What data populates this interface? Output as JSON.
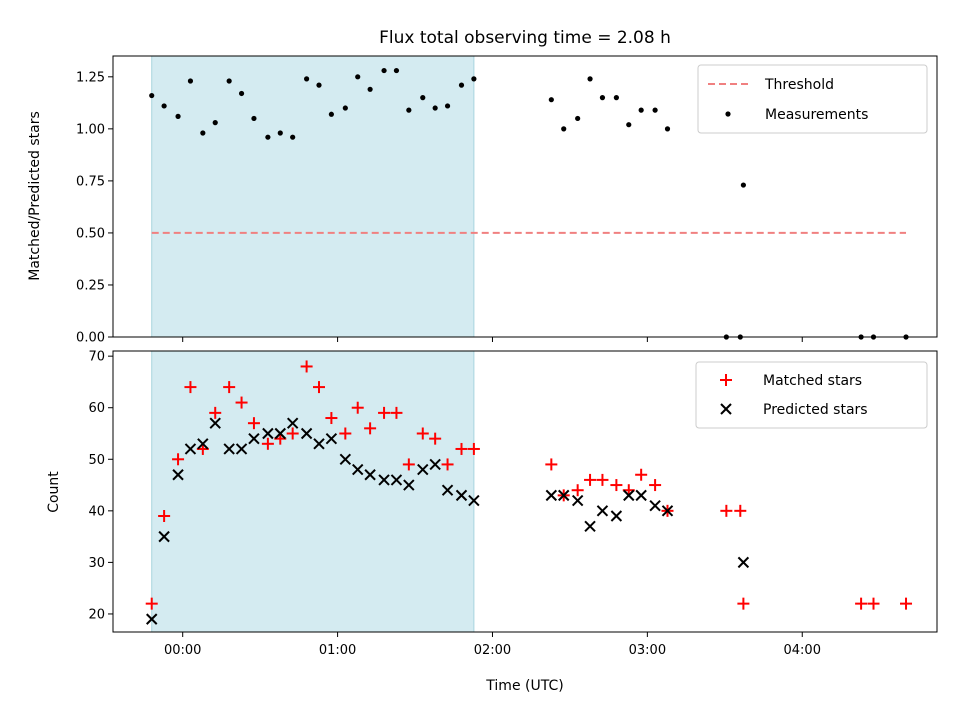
{
  "chart_data": [
    {
      "type": "scatter",
      "title": "Flux total observing time = 2.08 h",
      "xlabel": "",
      "ylabel": "Matched/Predicted stars",
      "ylim": [
        0.0,
        1.35
      ],
      "yticks": [
        "0.00",
        "0.25",
        "0.50",
        "0.75",
        "1.00",
        "1.25"
      ],
      "xlim_hours": [
        -0.45,
        4.87
      ],
      "highlight_span_hours": [
        -0.2,
        1.88
      ],
      "highlight_color": "#d4ebf1",
      "threshold": {
        "name": "Threshold",
        "value": 0.5,
        "x_range_hours": [
          -0.2,
          4.67
        ],
        "color": "#f08080"
      },
      "series": [
        {
          "name": "Measurements",
          "color": "#000000",
          "x_hours": [
            -0.2,
            -0.12,
            -0.03,
            0.05,
            0.13,
            0.21,
            0.3,
            0.38,
            0.46,
            0.55,
            0.63,
            0.71,
            0.8,
            0.88,
            0.96,
            1.05,
            1.13,
            1.21,
            1.3,
            1.38,
            1.46,
            1.55,
            1.63,
            1.71,
            1.8,
            1.88,
            2.38,
            2.46,
            2.55,
            2.63,
            2.71,
            2.8,
            2.88,
            2.96,
            3.05,
            3.13,
            3.51,
            3.6,
            3.62,
            4.38,
            4.46,
            4.67
          ],
          "y": [
            1.16,
            1.11,
            1.06,
            1.23,
            0.98,
            1.03,
            1.23,
            1.17,
            1.05,
            0.96,
            0.98,
            0.96,
            1.24,
            1.21,
            1.07,
            1.1,
            1.25,
            1.19,
            1.28,
            1.28,
            1.09,
            1.15,
            1.1,
            1.11,
            1.21,
            1.24,
            1.14,
            1.0,
            1.05,
            1.24,
            1.15,
            1.15,
            1.02,
            1.09,
            1.09,
            1.0,
            0.0,
            0.0,
            0.73,
            0.0,
            0.0,
            0.0
          ]
        }
      ]
    },
    {
      "type": "scatter",
      "title": "",
      "xlabel": "Time (UTC)",
      "ylabel": "Count",
      "ylim": [
        16.5,
        71
      ],
      "yticks": [
        "20",
        "30",
        "40",
        "50",
        "60",
        "70"
      ],
      "xlim_hours": [
        -0.45,
        4.87
      ],
      "xticks": [
        "00:00",
        "01:00",
        "02:00",
        "03:00",
        "04:00"
      ],
      "highlight_span_hours": [
        -0.2,
        1.88
      ],
      "highlight_color": "#d4ebf1",
      "series": [
        {
          "name": "Matched stars",
          "marker": "+",
          "color": "#ff0000",
          "x_hours": [
            -0.2,
            -0.12,
            -0.03,
            0.05,
            0.13,
            0.21,
            0.3,
            0.38,
            0.46,
            0.55,
            0.63,
            0.71,
            0.8,
            0.88,
            0.96,
            1.05,
            1.13,
            1.21,
            1.3,
            1.38,
            1.46,
            1.55,
            1.63,
            1.71,
            1.8,
            1.88,
            2.38,
            2.46,
            2.55,
            2.63,
            2.71,
            2.8,
            2.88,
            2.96,
            3.05,
            3.13,
            3.51,
            3.6,
            3.62,
            4.38,
            4.46,
            4.67
          ],
          "y": [
            22,
            39,
            50,
            64,
            52,
            59,
            64,
            61,
            57,
            53,
            54,
            55,
            68,
            64,
            58,
            55,
            60,
            56,
            59,
            59,
            49,
            55,
            54,
            49,
            52,
            52,
            49,
            43,
            44,
            46,
            46,
            45,
            44,
            47,
            45,
            40,
            40,
            40,
            22,
            22,
            22,
            22
          ]
        },
        {
          "name": "Predicted stars",
          "marker": "x",
          "color": "#000000",
          "x_hours": [
            -0.2,
            -0.12,
            -0.03,
            0.05,
            0.13,
            0.21,
            0.3,
            0.38,
            0.46,
            0.55,
            0.63,
            0.71,
            0.8,
            0.88,
            0.96,
            1.05,
            1.13,
            1.21,
            1.3,
            1.38,
            1.46,
            1.55,
            1.63,
            1.71,
            1.8,
            1.88,
            2.38,
            2.46,
            2.55,
            2.63,
            2.71,
            2.8,
            2.88,
            2.96,
            3.05,
            3.13,
            3.62
          ],
          "y": [
            19,
            35,
            47,
            52,
            53,
            57,
            52,
            52,
            54,
            55,
            55,
            57,
            55,
            53,
            54,
            50,
            48,
            47,
            46,
            46,
            45,
            48,
            49,
            44,
            43,
            42,
            43,
            43,
            42,
            37,
            40,
            39,
            43,
            43,
            41,
            40,
            30
          ]
        }
      ]
    }
  ]
}
